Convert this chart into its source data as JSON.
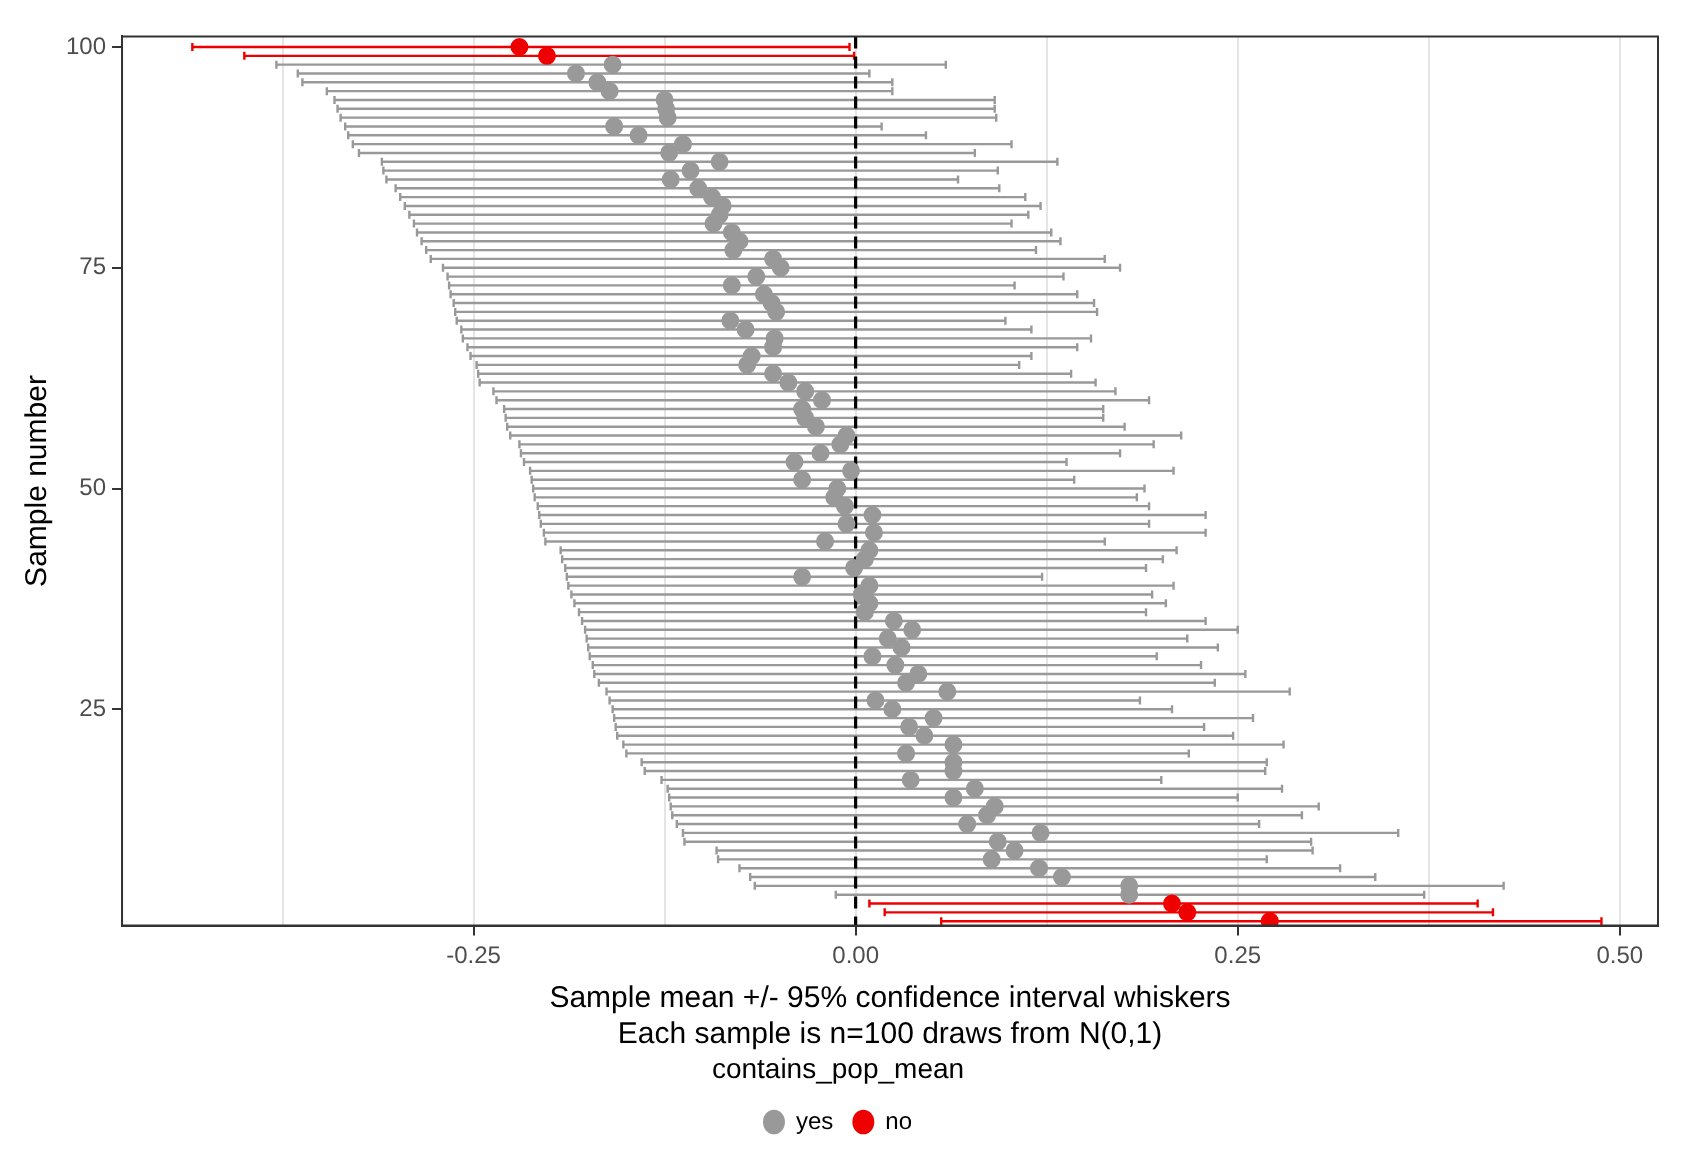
{
  "chart_data": {
    "type": "scatter",
    "xlabel": "Sample mean +/- 95% confidence interval whiskers\nEach sample is n=100 draws from N(0,1)",
    "ylabel": "Sample number",
    "legend_title": "contains_pop_mean",
    "legend": "bottom",
    "marker": "circle",
    "grid": "x",
    "xlim": [
      -0.48,
      0.525
    ],
    "xticks": [
      {
        "value": -0.375,
        "label": null
      },
      {
        "value": -0.25,
        "label": "-0.25"
      },
      {
        "value": -0.125,
        "label": null
      },
      {
        "value": 0,
        "label": "0.00"
      },
      {
        "value": 0.125,
        "label": null
      },
      {
        "value": 0.25,
        "label": "0.25"
      },
      {
        "value": 0.375,
        "label": null
      },
      {
        "value": 0.5,
        "label": "0.50"
      }
    ],
    "ylim": [
      0.5,
      101.2
    ],
    "yticks": [
      25,
      50,
      75,
      100
    ],
    "ref_lines": [
      {
        "axis": "x",
        "value": 0,
        "color": "#000000",
        "line_style": "dashed"
      }
    ],
    "series": [
      {
        "name": "yes",
        "color": "#999999",
        "x": [
          0.179,
          0.179,
          0.135,
          0.12,
          0.089,
          0.104,
          0.093,
          0.121,
          0.073,
          0.086,
          0.091,
          0.064,
          0.078,
          0.036,
          0.064,
          0.064,
          0.033,
          0.064,
          0.045,
          0.035,
          0.051,
          0.024,
          0.013,
          0.06,
          0.033,
          0.041,
          0.026,
          0.011,
          0.03,
          0.021,
          0.037,
          0.025,
          0.006,
          0.009,
          0.004,
          0.009,
          -0.035,
          -0.001,
          0.006,
          0.009,
          -0.02,
          0.012,
          -0.006,
          0.011,
          -0.007,
          -0.014,
          -0.012,
          -0.035,
          -0.003,
          -0.04,
          -0.023,
          -0.01,
          -0.006,
          -0.026,
          -0.033,
          -0.035,
          -0.022,
          -0.033,
          -0.044,
          -0.054,
          -0.071,
          -0.068,
          -0.054,
          -0.053,
          -0.072,
          -0.082,
          -0.052,
          -0.055,
          -0.06,
          -0.081,
          -0.065,
          -0.049,
          -0.054,
          -0.08,
          -0.076,
          -0.081,
          -0.093,
          -0.089,
          -0.087,
          -0.094,
          -0.103,
          -0.121,
          -0.108,
          -0.089,
          -0.122,
          -0.113,
          -0.142,
          -0.158,
          -0.123,
          -0.124,
          -0.125,
          -0.161,
          -0.169,
          -0.183,
          -0.159
        ],
        "values": [
          4,
          5,
          6,
          7,
          8,
          9,
          10,
          11,
          12,
          13,
          14,
          15,
          16,
          17,
          18,
          19,
          20,
          21,
          22,
          23,
          24,
          25,
          26,
          27,
          28,
          29,
          30,
          31,
          32,
          33,
          34,
          35,
          36,
          37,
          38,
          39,
          40,
          41,
          42,
          43,
          44,
          45,
          46,
          47,
          48,
          49,
          50,
          51,
          52,
          53,
          54,
          55,
          56,
          57,
          58,
          59,
          60,
          61,
          62,
          63,
          64,
          65,
          66,
          67,
          68,
          69,
          70,
          71,
          72,
          73,
          74,
          75,
          76,
          77,
          78,
          79,
          80,
          81,
          82,
          83,
          84,
          85,
          86,
          87,
          88,
          89,
          90,
          91,
          92,
          93,
          94,
          95,
          96,
          97,
          98
        ],
        "xerrors": [
          [
            -0.013,
            0.372
          ],
          [
            -0.066,
            0.424
          ],
          [
            -0.069,
            0.34
          ],
          [
            -0.076,
            0.317
          ],
          [
            -0.09,
            0.269
          ],
          [
            -0.091,
            0.299
          ],
          [
            -0.112,
            0.298
          ],
          [
            -0.113,
            0.355
          ],
          [
            -0.117,
            0.264
          ],
          [
            -0.12,
            0.292
          ],
          [
            -0.121,
            0.303
          ],
          [
            -0.122,
            0.25
          ],
          [
            -0.123,
            0.279
          ],
          [
            -0.127,
            0.2
          ],
          [
            -0.138,
            0.268
          ],
          [
            -0.14,
            0.269
          ],
          [
            -0.15,
            0.218
          ],
          [
            -0.152,
            0.28
          ],
          [
            -0.156,
            0.247
          ],
          [
            -0.157,
            0.228
          ],
          [
            -0.158,
            0.26
          ],
          [
            -0.159,
            0.207
          ],
          [
            -0.161,
            0.186
          ],
          [
            -0.163,
            0.284
          ],
          [
            -0.168,
            0.235
          ],
          [
            -0.171,
            0.255
          ],
          [
            -0.172,
            0.226
          ],
          [
            -0.174,
            0.197
          ],
          [
            -0.175,
            0.237
          ],
          [
            -0.176,
            0.217
          ],
          [
            -0.177,
            0.25
          ],
          [
            -0.179,
            0.229
          ],
          [
            -0.181,
            0.19
          ],
          [
            -0.184,
            0.203
          ],
          [
            -0.186,
            0.194
          ],
          [
            -0.188,
            0.208
          ],
          [
            -0.189,
            0.122
          ],
          [
            -0.19,
            0.19
          ],
          [
            -0.192,
            0.201
          ],
          [
            -0.193,
            0.21
          ],
          [
            -0.203,
            0.163
          ],
          [
            -0.204,
            0.229
          ],
          [
            -0.206,
            0.192
          ],
          [
            -0.207,
            0.229
          ],
          [
            -0.208,
            0.192
          ],
          [
            -0.21,
            0.184
          ],
          [
            -0.211,
            0.189
          ],
          [
            -0.212,
            0.143
          ],
          [
            -0.213,
            0.208
          ],
          [
            -0.217,
            0.138
          ],
          [
            -0.219,
            0.173
          ],
          [
            -0.22,
            0.195
          ],
          [
            -0.226,
            0.213
          ],
          [
            -0.228,
            0.176
          ],
          [
            -0.229,
            0.162
          ],
          [
            -0.23,
            0.162
          ],
          [
            -0.235,
            0.192
          ],
          [
            -0.237,
            0.17
          ],
          [
            -0.246,
            0.157
          ],
          [
            -0.247,
            0.141
          ],
          [
            -0.248,
            0.107
          ],
          [
            -0.252,
            0.115
          ],
          [
            -0.254,
            0.145
          ],
          [
            -0.257,
            0.154
          ],
          [
            -0.258,
            0.115
          ],
          [
            -0.261,
            0.098
          ],
          [
            -0.262,
            0.158
          ],
          [
            -0.263,
            0.156
          ],
          [
            -0.265,
            0.145
          ],
          [
            -0.266,
            0.104
          ],
          [
            -0.267,
            0.136
          ],
          [
            -0.27,
            0.173
          ],
          [
            -0.278,
            0.163
          ],
          [
            -0.281,
            0.118
          ],
          [
            -0.284,
            0.134
          ],
          [
            -0.287,
            0.128
          ],
          [
            -0.289,
            0.102
          ],
          [
            -0.292,
            0.113
          ],
          [
            -0.295,
            0.121
          ],
          [
            -0.298,
            0.111
          ],
          [
            -0.301,
            0.094
          ],
          [
            -0.307,
            0.067
          ],
          [
            -0.309,
            0.093
          ],
          [
            -0.31,
            0.132
          ],
          [
            -0.325,
            0.078
          ],
          [
            -0.329,
            0.102
          ],
          [
            -0.332,
            0.046
          ],
          [
            -0.334,
            0.017
          ],
          [
            -0.337,
            0.092
          ],
          [
            -0.339,
            0.091
          ],
          [
            -0.341,
            0.091
          ],
          [
            -0.346,
            0.024
          ],
          [
            -0.362,
            0.024
          ],
          [
            -0.365,
            0.009
          ],
          [
            -0.379,
            0.059
          ]
        ]
      },
      {
        "name": "no",
        "color": "#ee0000",
        "x": [
          0.271,
          0.217,
          0.207,
          -0.202,
          -0.22
        ],
        "values": [
          1,
          2,
          3,
          99,
          100
        ],
        "xerrors": [
          [
            0.056,
            0.488
          ],
          [
            0.019,
            0.417
          ],
          [
            0.009,
            0.407
          ],
          [
            -0.4,
            -0.001
          ],
          [
            -0.434,
            -0.004
          ]
        ]
      }
    ]
  }
}
